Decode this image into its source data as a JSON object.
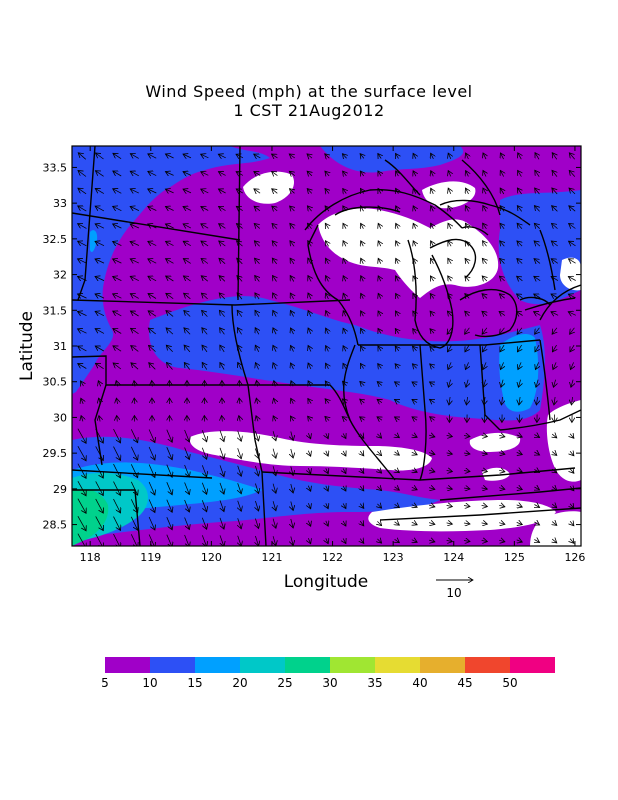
{
  "title_line1": "Wind Speed (mph) at the surface level",
  "title_line2": "1 CST 21Aug2012",
  "axes": {
    "xlabel": "Longitude",
    "ylabel": "Latitude",
    "xticks": [
      "118",
      "119",
      "120",
      "121",
      "122",
      "123",
      "124",
      "125",
      "126"
    ],
    "yticks": [
      "33.5",
      "33",
      "32.5",
      "32",
      "31.5",
      "31",
      "30.5",
      "30",
      "29.5",
      "29",
      "28.5"
    ],
    "xlim": [
      117.7,
      126.1
    ],
    "ylim": [
      28.2,
      33.8
    ]
  },
  "vector_reference": {
    "label": "10"
  },
  "colorbar": {
    "labels": [
      "5",
      "10",
      "15",
      "20",
      "25",
      "30",
      "35",
      "40",
      "45",
      "50"
    ],
    "colors": [
      "#a000c8",
      "#2d50f5",
      "#00a0ff",
      "#00c8c8",
      "#00d28c",
      "#a0e632",
      "#e6dc32",
      "#e6af2d",
      "#f0462d",
      "#f00082"
    ]
  },
  "colors": {
    "purple": "#a000c8",
    "blue": "#2d50f5",
    "lightblue": "#00a0ff",
    "teal": "#00c8c8",
    "green": "#00d28c",
    "white": "#ffffff"
  }
}
